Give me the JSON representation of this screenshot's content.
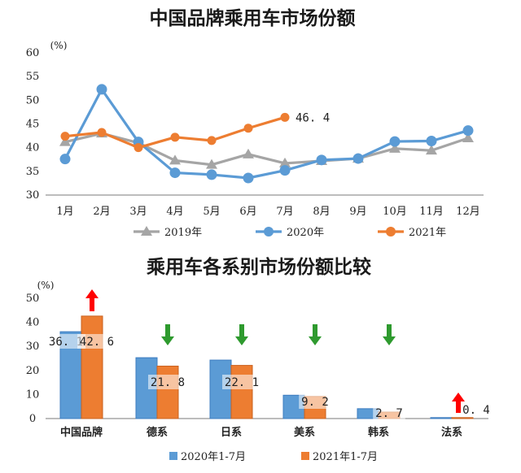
{
  "chart_data": [
    {
      "type": "line",
      "title": "中国品牌乘用车市场份额",
      "ylabel": "(%)",
      "ylim": [
        30,
        60
      ],
      "yticks": [
        30,
        35,
        40,
        45,
        50,
        55,
        60
      ],
      "categories": [
        "1月",
        "2月",
        "3月",
        "4月",
        "5月",
        "6月",
        "7月",
        "8月",
        "9月",
        "10月",
        "11月",
        "12月"
      ],
      "grid": false,
      "legend_position": "bottom",
      "series": [
        {
          "name": "2019年",
          "color": "#a5a5a5",
          "marker": "triangle",
          "values": [
            41.2,
            43.0,
            41.0,
            37.3,
            36.4,
            38.6,
            36.7,
            37.2,
            37.7,
            39.8,
            39.4,
            42.0
          ]
        },
        {
          "name": "2020年",
          "color": "#5b9bd5",
          "marker": "circle",
          "values": [
            37.6,
            52.3,
            41.2,
            34.7,
            34.3,
            33.6,
            35.2,
            37.4,
            37.7,
            41.3,
            41.4,
            43.6
          ]
        },
        {
          "name": "2021年",
          "color": "#ed7d31",
          "marker": "circle",
          "values": [
            42.4,
            43.2,
            40.0,
            42.2,
            41.5,
            44.1,
            46.4,
            null,
            null,
            null,
            null,
            null
          ]
        }
      ],
      "annotations": [
        {
          "series": "2021年",
          "index": 6,
          "text": "46. 4"
        }
      ]
    },
    {
      "type": "bar",
      "title": "乘用车各系别市场份额比较",
      "ylabel": "(%)",
      "ylim": [
        0,
        50
      ],
      "yticks": [
        0,
        10,
        20,
        30,
        40,
        50
      ],
      "categories": [
        "中国品牌",
        "德系",
        "日系",
        "美系",
        "韩系",
        "法系"
      ],
      "grid": false,
      "legend_position": "bottom",
      "series": [
        {
          "name": "2020年1-7月",
          "color": "#5b9bd5",
          "values": [
            36.1,
            25.3,
            24.3,
            9.7,
            4.1,
            0.4
          ]
        },
        {
          "name": "2021年1-7月",
          "color": "#ed7d31",
          "values": [
            42.6,
            21.8,
            22.1,
            9.2,
            2.7,
            0.4
          ]
        }
      ],
      "data_labels": [
        {
          "category_index": 0,
          "text": "36. 1"
        },
        {
          "category_index": 0,
          "text": "42. 6"
        },
        {
          "category_index": 1,
          "text": "21. 8"
        },
        {
          "category_index": 2,
          "text": "22. 1"
        },
        {
          "category_index": 3,
          "text": "9. 2"
        },
        {
          "category_index": 4,
          "text": "2. 7"
        },
        {
          "category_index": 5,
          "text": "0. 4"
        }
      ],
      "trend_arrows": [
        {
          "category_index": 0,
          "direction": "up",
          "color": "#ff0000"
        },
        {
          "category_index": 1,
          "direction": "down",
          "color": "#2e9a2e"
        },
        {
          "category_index": 2,
          "direction": "down",
          "color": "#2e9a2e"
        },
        {
          "category_index": 3,
          "direction": "down",
          "color": "#2e9a2e"
        },
        {
          "category_index": 4,
          "direction": "down",
          "color": "#2e9a2e"
        },
        {
          "category_index": 5,
          "direction": "up",
          "color": "#ff0000"
        }
      ]
    }
  ]
}
